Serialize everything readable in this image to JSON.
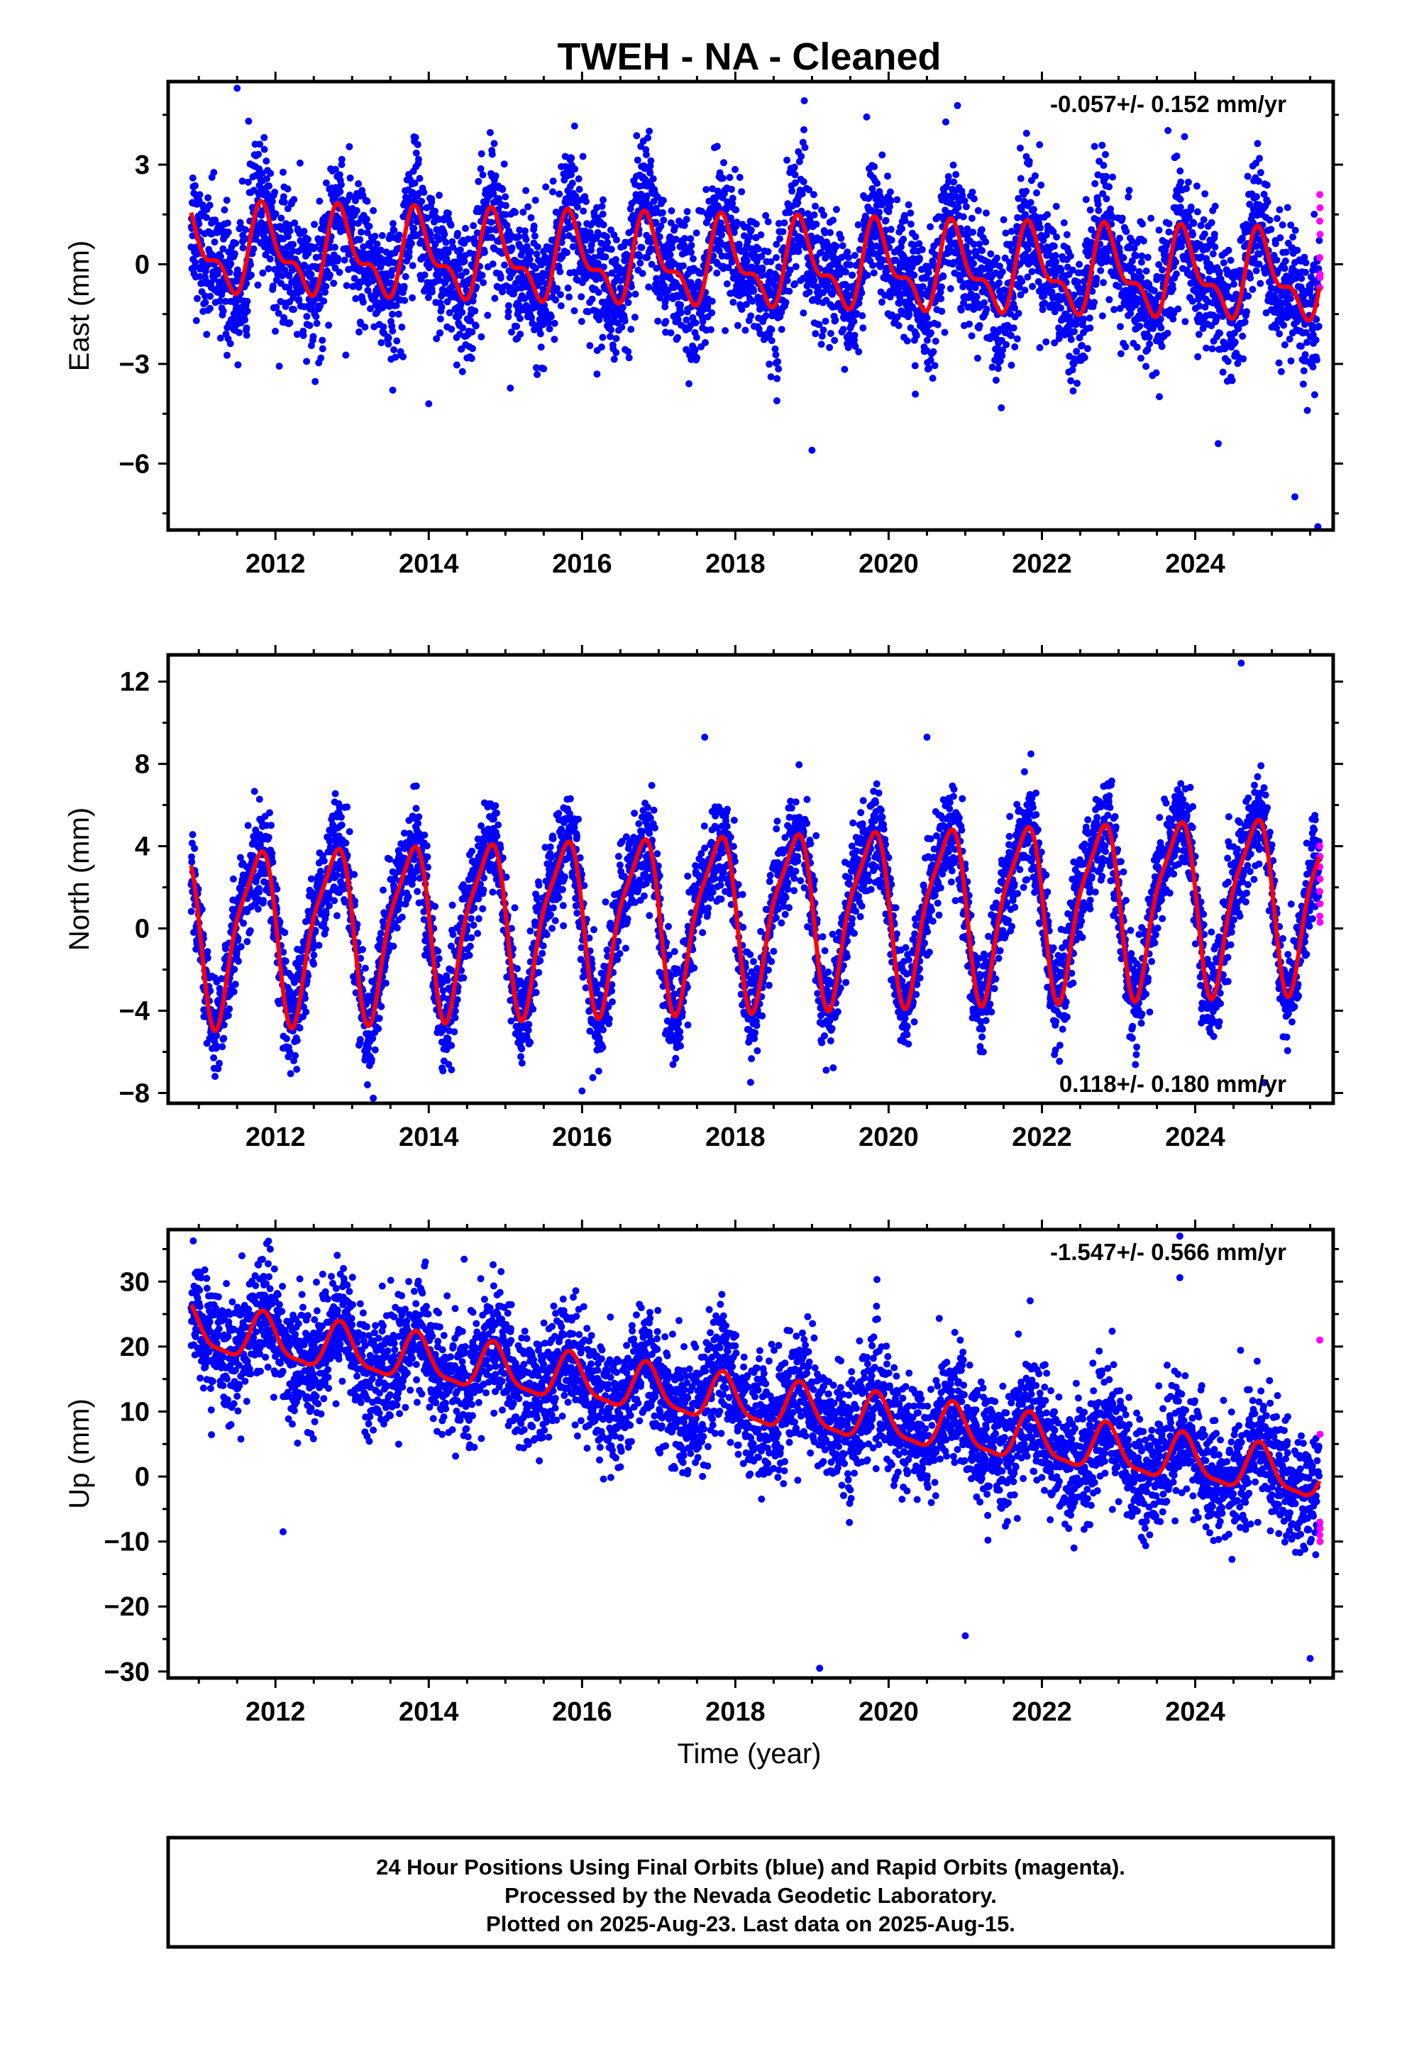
{
  "title": "TWEH  - NA - Cleaned",
  "xlabel": "Time (year)",
  "footer": {
    "line1": "24 Hour Positions Using Final Orbits (blue) and Rapid Orbits (magenta).",
    "line2": "Processed by the Nevada Geodetic Laboratory.",
    "line3": "Plotted on 2025-Aug-23. Last data on 2025-Aug-15."
  },
  "colors": {
    "final": "#0000ff",
    "rapid": "#ff00ff",
    "model": "#ff0000",
    "frame": "#000000"
  },
  "chart_data": [
    {
      "type": "scatter",
      "ylabel": "East (mm)",
      "rate": "-0.057+/- 0.152 mm/yr",
      "rate_position": "top-right",
      "xlim": [
        2010.6,
        2025.8
      ],
      "ylim": [
        -8.0,
        5.5
      ],
      "xticks": [
        2012,
        2014,
        2016,
        2018,
        2020,
        2022,
        2024
      ],
      "yticks": [
        -6,
        -3,
        0,
        3
      ],
      "yticklabels": [
        "−6",
        "−3",
        "0",
        "3"
      ],
      "start": 2010.9,
      "end": 2025.62,
      "trend": {
        "offset": 0.0,
        "rate": -0.057
      },
      "annual": {
        "amp": 1.1,
        "phase": 0.62
      },
      "semiannual": {
        "amp": 0.55,
        "phase": 0.16
      },
      "scatter_sd": 1.0,
      "rapid": [
        2.1,
        1.7,
        1.3,
        0.9,
        0.2,
        -0.3,
        -0.7,
        -0.4
      ],
      "outliers": [
        [
          2011.5,
          5.3
        ],
        [
          2019.0,
          -5.6
        ],
        [
          2025.6,
          -7.9
        ],
        [
          2025.3,
          -7.0
        ],
        [
          2014.0,
          -4.2
        ],
        [
          2024.3,
          -5.4
        ]
      ]
    },
    {
      "type": "scatter",
      "ylabel": "North (mm)",
      "rate": "0.118+/- 0.180 mm/yr",
      "rate_position": "bottom-right",
      "xlim": [
        2010.6,
        2025.8
      ],
      "ylim": [
        -8.5,
        13.3
      ],
      "xticks": [
        2012,
        2014,
        2016,
        2018,
        2020,
        2022,
        2024
      ],
      "yticks": [
        -8,
        -4,
        0,
        4,
        8,
        12
      ],
      "yticklabels": [
        "−8",
        "−4",
        "0",
        "4",
        "8",
        "12"
      ],
      "start": 2010.9,
      "end": 2025.62,
      "trend": {
        "offset": 0.6,
        "rate": 0.118
      },
      "annual": {
        "amp": 4.0,
        "phase": 0.5
      },
      "semiannual": {
        "amp": 1.0,
        "phase": 0.3
      },
      "scatter_sd": 1.2,
      "rapid": [
        4.0,
        3.5,
        3.0,
        2.4,
        1.8,
        1.2,
        0.6,
        0.3
      ],
      "outliers": [
        [
          2024.6,
          12.9
        ],
        [
          2017.6,
          9.3
        ],
        [
          2020.5,
          9.3
        ],
        [
          2016.0,
          -7.9
        ],
        [
          2013.2,
          -7.6
        ],
        [
          2024.9,
          -7.5
        ],
        [
          2011.2,
          -6.8
        ]
      ]
    },
    {
      "type": "scatter",
      "ylabel": "Up (mm)",
      "rate": "-1.547+/- 0.566 mm/yr",
      "rate_position": "top-right",
      "xlim": [
        2010.6,
        2025.8
      ],
      "ylim": [
        -31,
        38
      ],
      "xticks": [
        2012,
        2014,
        2016,
        2018,
        2020,
        2022,
        2024
      ],
      "yticks": [
        -30,
        -20,
        -10,
        0,
        10,
        20,
        30
      ],
      "yticklabels": [
        "−30",
        "−20",
        "−10",
        "0",
        "10",
        "20",
        "30"
      ],
      "start": 2010.9,
      "end": 2025.62,
      "trend": {
        "offset": 11.5,
        "rate": -1.547
      },
      "annual": {
        "amp": 3.5,
        "phase": 0.6
      },
      "semiannual": {
        "amp": 1.0,
        "phase": 0.2
      },
      "scatter_sd": 4.5,
      "rapid": [
        21.0,
        6.5,
        -7.0,
        -8.0,
        -9.0,
        -10.0
      ],
      "outliers": [
        [
          2023.8,
          37.0
        ],
        [
          2023.8,
          30.6
        ],
        [
          2019.1,
          -29.5
        ],
        [
          2025.5,
          -28.0
        ],
        [
          2012.1,
          -8.5
        ],
        [
          2021.0,
          -24.5
        ]
      ]
    }
  ]
}
